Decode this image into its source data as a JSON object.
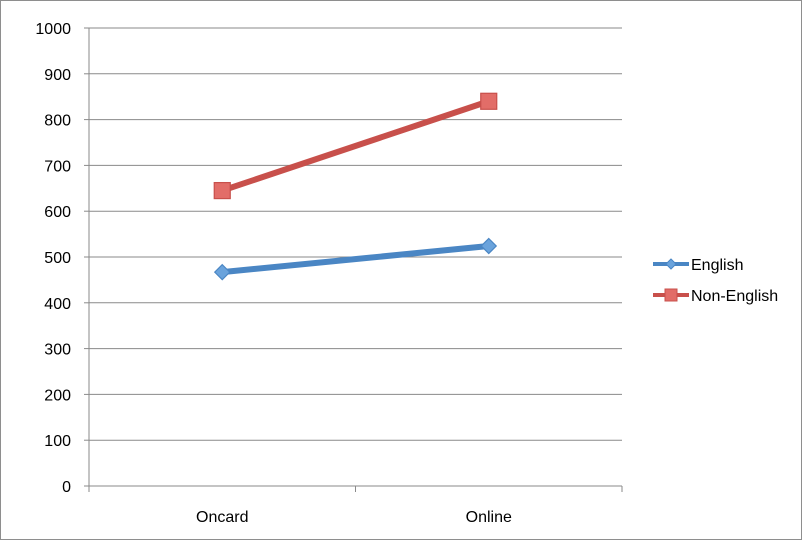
{
  "chart_data": {
    "type": "line",
    "title": "",
    "xlabel": "",
    "ylabel": "",
    "categories": [
      "Oncard",
      "Online"
    ],
    "ylim": [
      0,
      1000
    ],
    "yticks": [
      0,
      100,
      200,
      300,
      400,
      500,
      600,
      700,
      800,
      900,
      1000
    ],
    "grid": true,
    "legend_position": "right",
    "series": [
      {
        "name": "English",
        "values": [
          467,
          524
        ],
        "color": "#4a86c4",
        "marker": "diamond",
        "marker_color": "#6aa3dc"
      },
      {
        "name": "Non-English",
        "values": [
          645,
          840
        ],
        "color": "#c8504b",
        "marker": "square",
        "marker_color": "#e26d68"
      }
    ]
  }
}
